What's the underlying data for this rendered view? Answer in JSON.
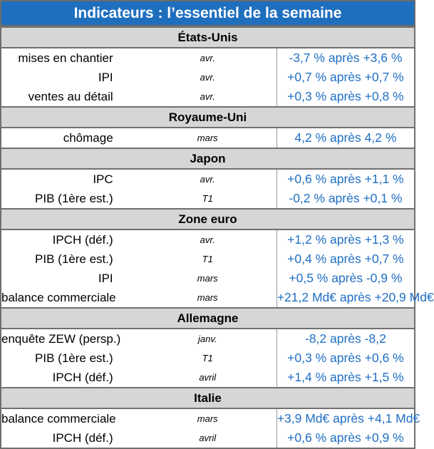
{
  "title": "Indicateurs : l’essentiel de la semaine",
  "sections": [
    {
      "country": "États-Unis",
      "rows": [
        {
          "indicator": "mises en chantier",
          "period": "avr.",
          "value": "-3,7 % après +3,6 %"
        },
        {
          "indicator": "IPI",
          "period": "avr.",
          "value": "+0,7 % après +0,7 %"
        },
        {
          "indicator": "ventes au détail",
          "period": "avr.",
          "value": "+0,3 % après +0,8 %"
        }
      ]
    },
    {
      "country": "Royaume-Uni",
      "rows": [
        {
          "indicator": "chômage",
          "period": "mars",
          "value": "4,2 % après 4,2 %"
        }
      ]
    },
    {
      "country": "Japon",
      "rows": [
        {
          "indicator": "IPC",
          "period": "avr.",
          "value": "+0,6 % après +1,1 %"
        },
        {
          "indicator": "PIB (1ère est.)",
          "period": "T1",
          "value": "-0,2 % après +0,1 %"
        }
      ]
    },
    {
      "country": "Zone euro",
      "rows": [
        {
          "indicator": "IPCH (déf.)",
          "period": "avr.",
          "value": "+1,2 % après +1,3 %"
        },
        {
          "indicator": "PIB (1ère est.)",
          "period": "T1",
          "value": "+0,4 % après +0,7 %"
        },
        {
          "indicator": "IPI",
          "period": "mars",
          "value": "+0,5 % après -0,9 %"
        },
        {
          "indicator": "balance commerciale",
          "period": "mars",
          "value": "+21,2 Md€ après +20,9 Md€"
        }
      ]
    },
    {
      "country": "Allemagne",
      "rows": [
        {
          "indicator": "enquête ZEW (persp.)",
          "period": "janv.",
          "value": "-8,2 après -8,2"
        },
        {
          "indicator": "PIB (1ère est.)",
          "period": "T1",
          "value": "+0,3 % après +0,6 %"
        },
        {
          "indicator": "IPCH (déf.)",
          "period": "avril",
          "value": "+1,4 % après +1,5 %"
        }
      ]
    },
    {
      "country": "Italie",
      "rows": [
        {
          "indicator": "balance commerciale",
          "period": "mars",
          "value": "+3,9 Md€ après +4,1 Md€"
        },
        {
          "indicator": "IPCH (déf.)",
          "period": "avril",
          "value": "+0,6 % après +0,9 %"
        }
      ]
    }
  ]
}
